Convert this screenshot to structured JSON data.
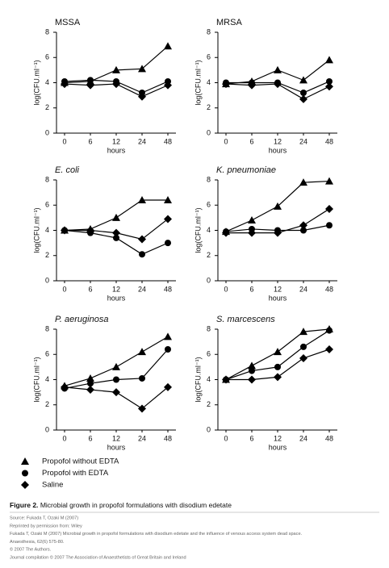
{
  "chart_data": [
    {
      "type": "line",
      "title": "MSSA",
      "title_italic": false,
      "categories": [
        "0",
        "6",
        "12",
        "24",
        "48"
      ],
      "xlabel": "hours",
      "ylabel": "log(CFU.ml⁻¹)",
      "ylim": [
        0,
        8
      ],
      "yticks": [
        0,
        2,
        4,
        6,
        8
      ],
      "series": [
        {
          "name": "Propofol without EDTA",
          "color": "#000000",
          "marker": "triangle",
          "values": [
            4.0,
            4.1,
            5.0,
            5.1,
            6.9
          ]
        },
        {
          "name": "Propofol with EDTA",
          "color": "#000000",
          "marker": "circle",
          "values": [
            4.1,
            4.2,
            4.1,
            3.2,
            4.1
          ]
        },
        {
          "name": "Saline",
          "color": "#000000",
          "marker": "diamond",
          "values": [
            3.9,
            3.8,
            3.9,
            2.9,
            3.8
          ]
        }
      ]
    },
    {
      "type": "line",
      "title": "MRSA",
      "title_italic": false,
      "categories": [
        "0",
        "6",
        "12",
        "24",
        "48"
      ],
      "xlabel": "hours",
      "ylabel": "log(CFU.ml⁻¹)",
      "ylim": [
        0,
        8
      ],
      "yticks": [
        0,
        2,
        4,
        6,
        8
      ],
      "series": [
        {
          "name": "Propofol without EDTA",
          "color": "#000000",
          "marker": "triangle",
          "values": [
            3.9,
            4.1,
            5.0,
            4.2,
            5.8
          ]
        },
        {
          "name": "Propofol with EDTA",
          "color": "#000000",
          "marker": "circle",
          "values": [
            4.0,
            4.0,
            4.0,
            3.2,
            4.1
          ]
        },
        {
          "name": "Saline",
          "color": "#000000",
          "marker": "diamond",
          "values": [
            3.9,
            3.8,
            3.9,
            2.7,
            3.7
          ]
        }
      ]
    },
    {
      "type": "line",
      "title": "E. coli",
      "title_italic": true,
      "categories": [
        "0",
        "6",
        "12",
        "24",
        "48"
      ],
      "xlabel": "hours",
      "ylabel": "log(CFU.ml⁻¹)",
      "ylim": [
        0,
        8
      ],
      "yticks": [
        0,
        2,
        4,
        6,
        8
      ],
      "series": [
        {
          "name": "Propofol without EDTA",
          "color": "#000000",
          "marker": "triangle",
          "values": [
            4.0,
            4.1,
            5.0,
            6.4,
            6.4
          ]
        },
        {
          "name": "Propofol with EDTA",
          "color": "#000000",
          "marker": "circle",
          "values": [
            4.0,
            3.8,
            3.4,
            2.1,
            3.0
          ]
        },
        {
          "name": "Saline",
          "color": "#000000",
          "marker": "diamond",
          "values": [
            4.0,
            4.0,
            3.8,
            3.3,
            4.9
          ]
        }
      ]
    },
    {
      "type": "line",
      "title": "K. pneumoniae",
      "title_italic": true,
      "categories": [
        "0",
        "6",
        "12",
        "24",
        "48"
      ],
      "xlabel": "hours",
      "ylabel": "log(CFU.ml⁻¹)",
      "ylim": [
        0,
        8
      ],
      "yticks": [
        0,
        2,
        4,
        6,
        8
      ],
      "series": [
        {
          "name": "Propofol without EDTA",
          "color": "#000000",
          "marker": "triangle",
          "values": [
            3.9,
            4.8,
            5.9,
            7.8,
            7.9
          ]
        },
        {
          "name": "Propofol with EDTA",
          "color": "#000000",
          "marker": "circle",
          "values": [
            3.9,
            4.1,
            4.0,
            4.0,
            4.4
          ]
        },
        {
          "name": "Saline",
          "color": "#000000",
          "marker": "diamond",
          "values": [
            3.8,
            3.8,
            3.8,
            4.4,
            5.7
          ]
        }
      ]
    },
    {
      "type": "line",
      "title": "P. aeruginosa",
      "title_italic": true,
      "categories": [
        "0",
        "6",
        "12",
        "24",
        "48"
      ],
      "xlabel": "hours",
      "ylabel": "log(CFU.ml⁻¹)",
      "ylim": [
        0,
        8
      ],
      "yticks": [
        0,
        2,
        4,
        6,
        8
      ],
      "series": [
        {
          "name": "Propofol without EDTA",
          "color": "#000000",
          "marker": "triangle",
          "values": [
            3.5,
            4.1,
            5.0,
            6.2,
            7.4
          ]
        },
        {
          "name": "Propofol with EDTA",
          "color": "#000000",
          "marker": "circle",
          "values": [
            3.3,
            3.7,
            4.0,
            4.1,
            6.4
          ]
        },
        {
          "name": "Saline",
          "color": "#000000",
          "marker": "diamond",
          "values": [
            3.4,
            3.2,
            3.0,
            1.7,
            3.4
          ]
        }
      ]
    },
    {
      "type": "line",
      "title": "S. marcescens",
      "title_italic": true,
      "categories": [
        "0",
        "6",
        "12",
        "24",
        "48"
      ],
      "xlabel": "hours",
      "ylabel": "log(CFU.ml⁻¹)",
      "ylim": [
        0,
        8
      ],
      "yticks": [
        0,
        2,
        4,
        6,
        8
      ],
      "series": [
        {
          "name": "Propofol without EDTA",
          "color": "#000000",
          "marker": "triangle",
          "values": [
            4.0,
            5.1,
            6.2,
            7.8,
            8.0
          ]
        },
        {
          "name": "Propofol with EDTA",
          "color": "#000000",
          "marker": "circle",
          "values": [
            4.0,
            4.7,
            5.0,
            6.6,
            7.9
          ]
        },
        {
          "name": "Saline",
          "color": "#000000",
          "marker": "diamond",
          "values": [
            4.0,
            4.0,
            4.2,
            5.7,
            6.4
          ]
        }
      ]
    }
  ],
  "caption": {
    "label": "Figure 2.",
    "text": "Microbial growth in propofol formulations with disodium edetate"
  },
  "source": [
    "Source: Fukada T, Ozaki M (2007)",
    "Reprinted by permission from: Wiley",
    "Fukada T, Ozaki M (2007) Microbial growth in propofol formulations with disodium edetate and the influence of venous access system dead space.",
    "Anaesthesia, 62(6) 575-80.",
    "© 2007 The Authors.",
    "Journal compilation © 2007 The Association of Anaesthetists of Great Britain and Ireland"
  ]
}
